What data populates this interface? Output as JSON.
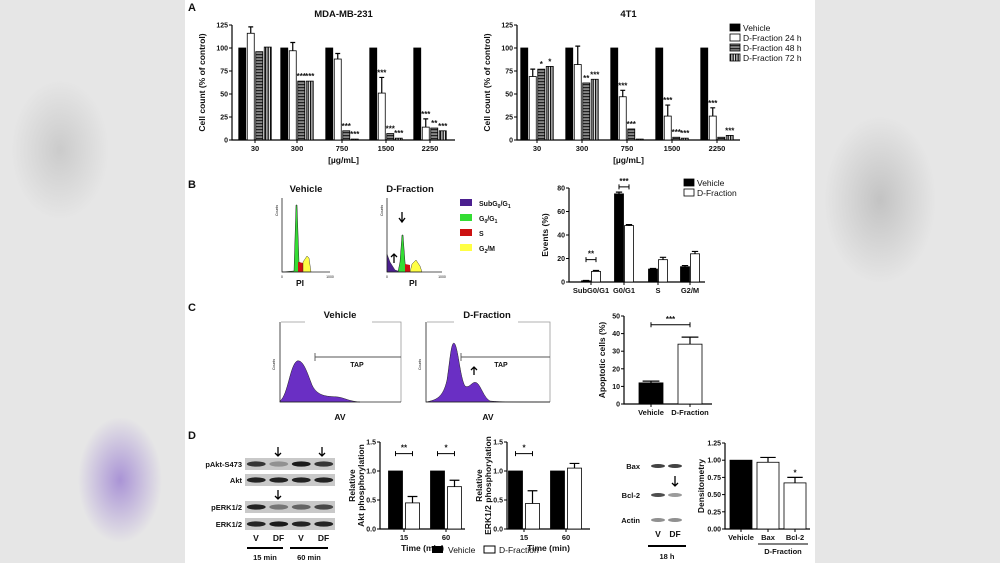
{
  "panel_labels": [
    "A",
    "B",
    "C",
    "D"
  ],
  "colors": {
    "vehicle": "#000000",
    "d_fraction": "#ffffff",
    "flow_fill": "#6a2fc4",
    "subG": "#4b1f8f",
    "G0G1": "#33dd33",
    "S": "#cc1111",
    "G2M": "#ffff44"
  },
  "flow": {
    "B": {
      "titles": [
        "Vehicle",
        "D-Fraction"
      ],
      "xlabel": "PI",
      "ylabel": "Counts",
      "xticks": [
        "0",
        "1000"
      ],
      "yticks": [
        "0",
        "280",
        "560",
        "840",
        "1120",
        "1400"
      ],
      "legend": [
        {
          "label": "SubG0/G1",
          "main": "SubG",
          "sub1": "0",
          "mid": "/G",
          "sub2": "1",
          "color": "#4b1f8f"
        },
        {
          "label": "G0/G1",
          "main": "G",
          "sub1": "0",
          "mid": "/G",
          "sub2": "1",
          "color": "#33dd33"
        },
        {
          "label": "S",
          "main": "S",
          "sub1": "",
          "mid": "",
          "sub2": "",
          "color": "#cc1111"
        },
        {
          "label": "G2/M",
          "main": "G",
          "sub1": "2",
          "mid": "/M",
          "sub2": "",
          "color": "#ffff44"
        }
      ]
    },
    "C": {
      "titles": [
        "Vehicle",
        "D-Fraction"
      ],
      "xlabel": "AV",
      "ylabel": "Counts",
      "gate": "TAP"
    }
  },
  "blots": {
    "akt_erk": {
      "rows": [
        "pAkt-S473",
        "Akt",
        "pERK1/2",
        "ERK1/2"
      ],
      "lanes": [
        "V",
        "DF",
        "V",
        "DF"
      ],
      "times": [
        "15 min",
        "60 min"
      ]
    },
    "bax_bcl": {
      "rows": [
        "Bax",
        "Bcl-2",
        "Actin"
      ],
      "lanes": [
        "V",
        "DF"
      ],
      "time": "18 h"
    }
  },
  "d_legend": {
    "vehicle": "Vehicle",
    "d_fraction": "D-Fraction"
  },
  "chart_data": [
    {
      "type": "bar",
      "title": "MDA-MB-231",
      "xlabel": "[µg/mL]",
      "ylabel": "Cell count (% of control)",
      "ylim": [
        0,
        125
      ],
      "yticks": [
        "0",
        "25",
        "50",
        "75",
        "100",
        "125"
      ],
      "grid": false,
      "categories": [
        "30",
        "300",
        "750",
        "1500",
        "2250"
      ],
      "series": [
        {
          "name": "Vehicle",
          "style": "#000000",
          "values": [
            100,
            100,
            100,
            100,
            100
          ],
          "errors": [
            0,
            0,
            0,
            0,
            0
          ]
        },
        {
          "name": "D-Fraction 24 h",
          "style": "#ffffff",
          "values": [
            116,
            97,
            88,
            51,
            14
          ],
          "errors": [
            7,
            9,
            6,
            17,
            9
          ]
        },
        {
          "name": "D-Fraction 48 h",
          "style": "hatch-h",
          "values": [
            96,
            64,
            10,
            7,
            13
          ],
          "errors": [
            0,
            0,
            0,
            0,
            0
          ]
        },
        {
          "name": "D-Fraction 72 h",
          "style": "hatch-v",
          "values": [
            101,
            64,
            1,
            2,
            10
          ],
          "errors": [
            0,
            0,
            0,
            0,
            0
          ]
        }
      ],
      "significance": [
        {
          "category": 1,
          "series": 2,
          "label": "***"
        },
        {
          "category": 1,
          "series": 3,
          "label": "***"
        },
        {
          "category": 2,
          "series": 2,
          "label": "***"
        },
        {
          "category": 2,
          "series": 3,
          "label": "***"
        },
        {
          "category": 3,
          "series": 1,
          "label": "***"
        },
        {
          "category": 3,
          "series": 2,
          "label": "***"
        },
        {
          "category": 3,
          "series": 3,
          "label": "***"
        },
        {
          "category": 4,
          "series": 1,
          "label": "***"
        },
        {
          "category": 4,
          "series": 2,
          "label": "**"
        },
        {
          "category": 4,
          "series": 3,
          "label": "***"
        }
      ]
    },
    {
      "type": "bar",
      "title": "4T1",
      "xlabel": "[µg/mL]",
      "ylabel": "Cell count (% of control)",
      "ylim": [
        0,
        125
      ],
      "yticks": [
        "0",
        "25",
        "50",
        "75",
        "100",
        "125"
      ],
      "grid": false,
      "legend": "top-right",
      "categories": [
        "30",
        "300",
        "750",
        "1500",
        "2250"
      ],
      "series": [
        {
          "name": "Vehicle",
          "style": "#000000",
          "values": [
            100,
            100,
            100,
            100,
            100
          ],
          "errors": [
            0,
            0,
            0,
            0,
            0
          ]
        },
        {
          "name": "D-Fraction 24 h",
          "style": "#ffffff",
          "values": [
            69,
            82,
            47,
            26,
            26
          ],
          "errors": [
            8,
            20,
            7,
            12,
            9
          ]
        },
        {
          "name": "D-Fraction 48 h",
          "style": "hatch-h",
          "values": [
            77,
            62,
            12,
            3,
            3
          ],
          "errors": [
            0,
            0,
            0,
            0,
            0
          ]
        },
        {
          "name": "D-Fraction 72 h",
          "style": "hatch-v",
          "values": [
            80,
            66,
            1,
            2,
            5
          ],
          "errors": [
            0,
            0,
            0,
            0,
            0
          ]
        }
      ],
      "significance": [
        {
          "category": 0,
          "series": 2,
          "label": "*"
        },
        {
          "category": 0,
          "series": 3,
          "label": "*"
        },
        {
          "category": 1,
          "series": 2,
          "label": "**"
        },
        {
          "category": 1,
          "series": 3,
          "label": "***"
        },
        {
          "category": 2,
          "series": 1,
          "label": "***"
        },
        {
          "category": 2,
          "series": 2,
          "label": "***"
        },
        {
          "category": 3,
          "series": 1,
          "label": "***"
        },
        {
          "category": 3,
          "series": 2,
          "label": "***"
        },
        {
          "category": 3,
          "series": 3,
          "label": "***"
        },
        {
          "category": 4,
          "series": 1,
          "label": "***"
        },
        {
          "category": 4,
          "series": 3,
          "label": "***"
        }
      ]
    },
    {
      "type": "bar",
      "title": "",
      "xlabel": "",
      "ylabel": "Events (%)",
      "ylim": [
        0,
        80
      ],
      "yticks": [
        "0",
        "20",
        "40",
        "60",
        "80"
      ],
      "grid": false,
      "legend": "top-right",
      "categories": [
        "SubG0/G1",
        "G0/G1",
        "S",
        "G2/M"
      ],
      "series": [
        {
          "name": "Vehicle",
          "style": "#000000",
          "values": [
            1,
            75,
            11,
            13
          ],
          "errors": [
            0.3,
            1.5,
            0.5,
            1
          ]
        },
        {
          "name": "D-Fraction",
          "style": "#ffffff",
          "values": [
            9,
            48,
            19,
            24
          ],
          "errors": [
            0.8,
            0.8,
            2,
            2
          ]
        }
      ],
      "brackets": [
        {
          "category": 0,
          "y": 19,
          "label": "**"
        },
        {
          "category": 1,
          "y": 81,
          "label": "***"
        }
      ]
    },
    {
      "type": "bar",
      "title": "",
      "xlabel": "",
      "ylabel": "Apoptotic cells (%)",
      "ylim": [
        0,
        50
      ],
      "yticks": [
        "0",
        "10",
        "20",
        "30",
        "40",
        "50"
      ],
      "grid": false,
      "categories": [
        "Vehicle",
        "D-Fraction"
      ],
      "series": [
        {
          "name": "",
          "style": "per-bar",
          "bar_colors": [
            "#000000",
            "#ffffff"
          ],
          "values": [
            12,
            34
          ],
          "errors": [
            1,
            4
          ]
        }
      ],
      "brackets": [
        {
          "from": 0,
          "to": 1,
          "y": 45,
          "label": "***"
        }
      ]
    },
    {
      "type": "bar",
      "title": "",
      "xlabel": "Time (min)",
      "ylabel": [
        "Relative",
        "Akt phosphorylation"
      ],
      "ylim": [
        0,
        1.5
      ],
      "yticks": [
        "0.0",
        "0.5",
        "1.0",
        "1.5"
      ],
      "grid": false,
      "categories": [
        "15",
        "60"
      ],
      "series": [
        {
          "name": "Vehicle",
          "style": "#000000",
          "values": [
            1.0,
            1.0
          ],
          "errors": [
            0,
            0
          ]
        },
        {
          "name": "D-Fraction",
          "style": "#ffffff",
          "values": [
            0.45,
            0.73
          ],
          "errors": [
            0.11,
            0.11
          ]
        }
      ],
      "brackets": [
        {
          "category": 0,
          "y": 1.3,
          "label": "**"
        },
        {
          "category": 1,
          "y": 1.3,
          "label": "*"
        }
      ]
    },
    {
      "type": "bar",
      "title": "",
      "xlabel": "Time (min)",
      "ylabel": [
        "Relative",
        "ERK1/2 phosphorylation"
      ],
      "ylim": [
        0,
        1.5
      ],
      "yticks": [
        "0.0",
        "0.5",
        "1.0",
        "1.5"
      ],
      "grid": false,
      "categories": [
        "15",
        "60"
      ],
      "series": [
        {
          "name": "Vehicle",
          "style": "#000000",
          "values": [
            1.0,
            1.0
          ],
          "errors": [
            0,
            0
          ]
        },
        {
          "name": "D-Fraction",
          "style": "#ffffff",
          "values": [
            0.44,
            1.05
          ],
          "errors": [
            0.22,
            0.08
          ]
        }
      ],
      "brackets": [
        {
          "category": 0,
          "y": 1.3,
          "label": "*"
        }
      ]
    },
    {
      "type": "bar",
      "title": "",
      "xlabel": "",
      "ylabel": "Densitometry",
      "ylim": [
        0,
        1.25
      ],
      "yticks": [
        "0.00",
        "0.25",
        "0.50",
        "0.75",
        "1.00",
        "1.25"
      ],
      "grid": false,
      "categories": [
        "Vehicle",
        "Bax",
        "Bcl-2"
      ],
      "group_label": "D-Fraction",
      "series": [
        {
          "name": "",
          "style": "per-bar",
          "bar_colors": [
            "#000000",
            "#ffffff",
            "#ffffff"
          ],
          "values": [
            1.0,
            0.97,
            0.67
          ],
          "errors": [
            0,
            0.07,
            0.08
          ]
        }
      ],
      "significance": [
        {
          "category": 2,
          "series": 0,
          "label": "*"
        }
      ]
    }
  ]
}
